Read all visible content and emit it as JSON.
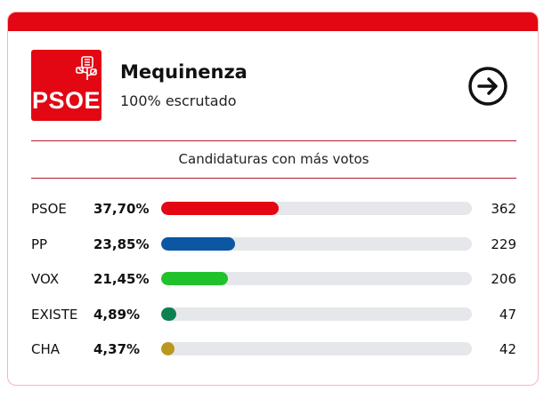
{
  "header": {
    "logo_text": "PSOE",
    "place": "Mequinenza",
    "scrutiny": "100% escrutado"
  },
  "section_title": "Candidaturas con más votos",
  "colors": {
    "accent": "#e30613",
    "divider": "#b51a2b",
    "track": "#e6e7eb"
  },
  "icons": {
    "next": "arrow-right-circle-icon",
    "logo": "psoe-rose-logo"
  },
  "results": [
    {
      "party": "PSOE",
      "pct_label": "37,70%",
      "share": 37.7,
      "votes": "362",
      "color": "#e30613"
    },
    {
      "party": "PP",
      "pct_label": "23,85%",
      "share": 23.85,
      "votes": "229",
      "color": "#0b57a4"
    },
    {
      "party": "VOX",
      "pct_label": "21,45%",
      "share": 21.45,
      "votes": "206",
      "color": "#1fc22a"
    },
    {
      "party": "EXISTE",
      "pct_label": "4,89%",
      "share": 4.89,
      "votes": "47",
      "color": "#0d8051"
    },
    {
      "party": "CHA",
      "pct_label": "4,37%",
      "share": 4.37,
      "votes": "42",
      "color": "#b9981d"
    }
  ]
}
